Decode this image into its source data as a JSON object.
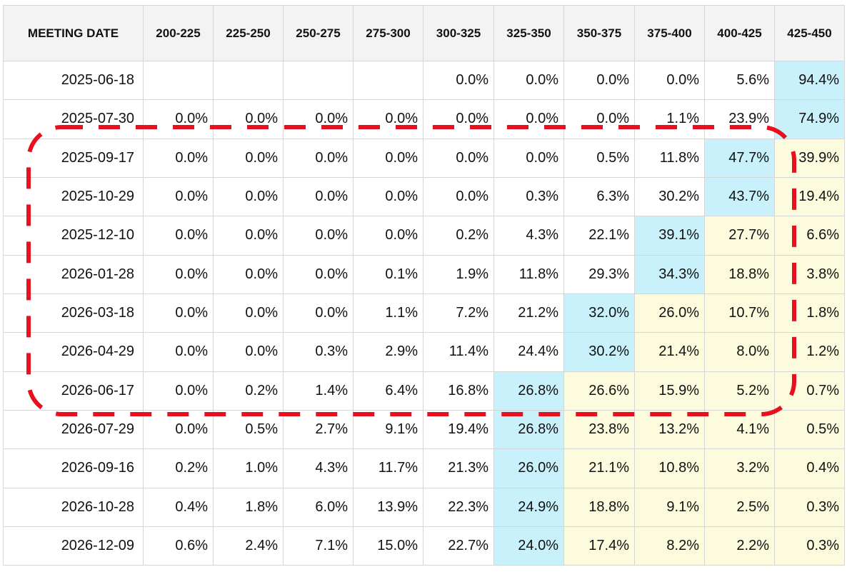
{
  "chart_data": {
    "type": "table",
    "columns": [
      "MEETING DATE",
      "200-225",
      "225-250",
      "250-275",
      "275-300",
      "300-325",
      "325-350",
      "350-375",
      "375-400",
      "400-425",
      "425-450"
    ],
    "rows": [
      {
        "date": "2025-06-18",
        "values": [
          "",
          "",
          "",
          "",
          "0.0%",
          "0.0%",
          "0.0%",
          "0.0%",
          "5.6%",
          "94.4%"
        ]
      },
      {
        "date": "2025-07-30",
        "values": [
          "0.0%",
          "0.0%",
          "0.0%",
          "0.0%",
          "0.0%",
          "0.0%",
          "0.0%",
          "1.1%",
          "23.9%",
          "74.9%"
        ]
      },
      {
        "date": "2025-09-17",
        "values": [
          "0.0%",
          "0.0%",
          "0.0%",
          "0.0%",
          "0.0%",
          "0.0%",
          "0.5%",
          "11.8%",
          "47.7%",
          "39.9%"
        ]
      },
      {
        "date": "2025-10-29",
        "values": [
          "0.0%",
          "0.0%",
          "0.0%",
          "0.0%",
          "0.0%",
          "0.3%",
          "6.3%",
          "30.2%",
          "43.7%",
          "19.4%"
        ]
      },
      {
        "date": "2025-12-10",
        "values": [
          "0.0%",
          "0.0%",
          "0.0%",
          "0.0%",
          "0.2%",
          "4.3%",
          "22.1%",
          "39.1%",
          "27.7%",
          "6.6%"
        ]
      },
      {
        "date": "2026-01-28",
        "values": [
          "0.0%",
          "0.0%",
          "0.0%",
          "0.1%",
          "1.9%",
          "11.8%",
          "29.3%",
          "34.3%",
          "18.8%",
          "3.8%"
        ]
      },
      {
        "date": "2026-03-18",
        "values": [
          "0.0%",
          "0.0%",
          "0.0%",
          "1.1%",
          "7.2%",
          "21.2%",
          "32.0%",
          "26.0%",
          "10.7%",
          "1.8%"
        ]
      },
      {
        "date": "2026-04-29",
        "values": [
          "0.0%",
          "0.0%",
          "0.3%",
          "2.9%",
          "11.4%",
          "24.4%",
          "30.2%",
          "21.4%",
          "8.0%",
          "1.2%"
        ]
      },
      {
        "date": "2026-06-17",
        "values": [
          "0.0%",
          "0.2%",
          "1.4%",
          "6.4%",
          "16.8%",
          "26.8%",
          "26.6%",
          "15.9%",
          "5.2%",
          "0.7%"
        ]
      },
      {
        "date": "2026-07-29",
        "values": [
          "0.0%",
          "0.5%",
          "2.7%",
          "9.1%",
          "19.4%",
          "26.8%",
          "23.8%",
          "13.2%",
          "4.1%",
          "0.5%"
        ]
      },
      {
        "date": "2026-09-16",
        "values": [
          "0.2%",
          "1.0%",
          "4.3%",
          "11.7%",
          "21.3%",
          "26.0%",
          "21.1%",
          "10.8%",
          "3.2%",
          "0.4%"
        ]
      },
      {
        "date": "2026-10-28",
        "values": [
          "0.4%",
          "1.8%",
          "6.0%",
          "13.9%",
          "22.3%",
          "24.9%",
          "18.8%",
          "9.1%",
          "2.5%",
          "0.3%"
        ]
      },
      {
        "date": "2026-12-09",
        "values": [
          "0.6%",
          "2.4%",
          "7.1%",
          "15.0%",
          "22.7%",
          "24.0%",
          "17.4%",
          "8.2%",
          "2.2%",
          "0.3%"
        ]
      }
    ],
    "highlight_colors": {
      "max_cell": "#c9f1fb",
      "below_max": "#fdfbdd"
    },
    "annotation": {
      "shape": "dashed-rounded-rectangle",
      "color": "#e8101e",
      "encloses_rows": [
        "2025-09-17",
        "2026-06-17"
      ]
    }
  }
}
